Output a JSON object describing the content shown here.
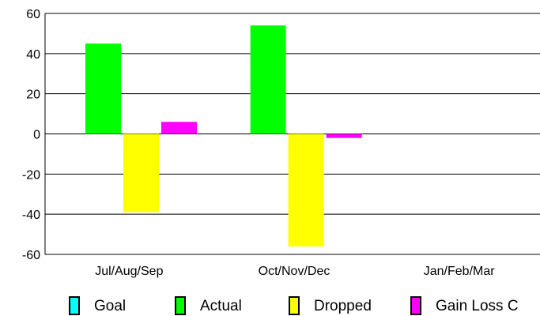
{
  "chart_data": {
    "type": "bar",
    "title": "",
    "xlabel": "",
    "ylabel": "",
    "categories": [
      "Jul/Aug/Sep",
      "Oct/Nov/Dec",
      "Jan/Feb/Mar"
    ],
    "ylim": [
      -60,
      60
    ],
    "yticks": [
      60,
      40,
      20,
      0,
      -20,
      -40,
      -60
    ],
    "grid": "horizontal",
    "legend_position": "bottom",
    "series": [
      {
        "name": "Goal",
        "color": "#00ffff",
        "values": [
          null,
          null,
          null
        ]
      },
      {
        "name": "Actual",
        "color": "#00ff00",
        "values": [
          45,
          54,
          null
        ]
      },
      {
        "name": "Dropped",
        "color": "#ffff00",
        "values": [
          -39,
          -56,
          null
        ]
      },
      {
        "name": "Gain Loss C",
        "color": "#ff00ff",
        "values": [
          6,
          -2,
          null
        ]
      }
    ]
  }
}
